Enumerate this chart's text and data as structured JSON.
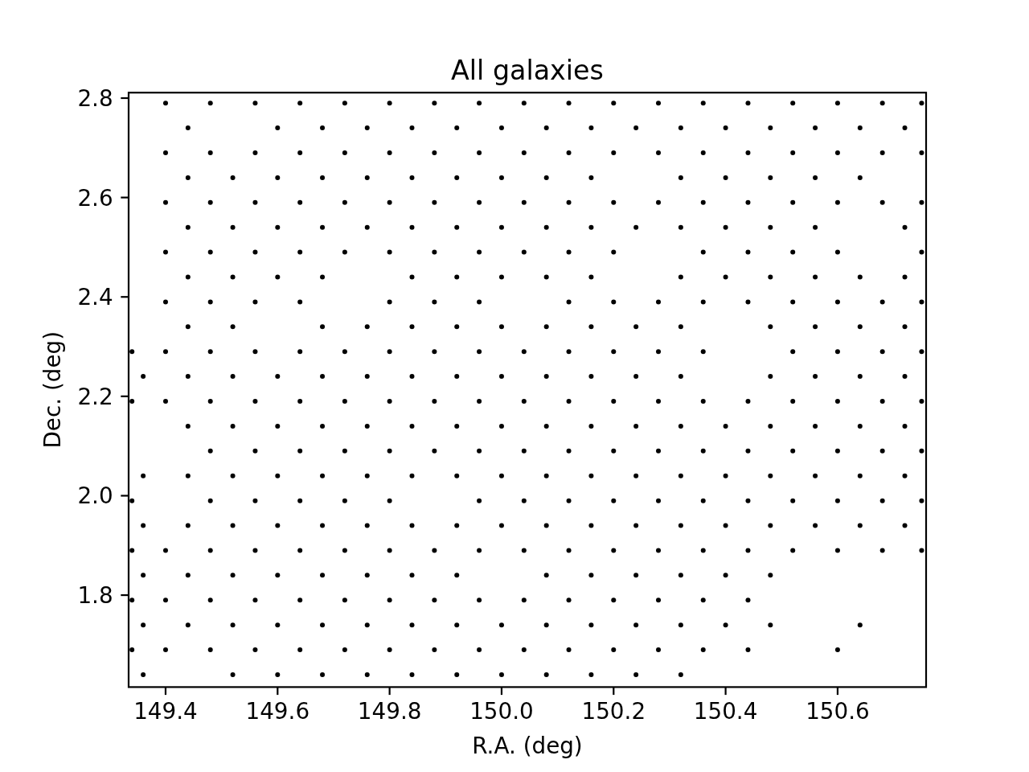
{
  "chart_data": {
    "type": "scatter",
    "title": "All galaxies",
    "xlabel": "R.A. (deg)",
    "ylabel": "Dec. (deg)",
    "color": "#000000",
    "marker": "circle",
    "xlim": [
      149.334,
      150.758
    ],
    "ylim": [
      1.615,
      2.811
    ],
    "xticks": [
      149.4,
      149.6,
      149.8,
      {
        "value": 150,
        "label": "150.0"
      },
      150.2,
      150.4,
      150.6
    ],
    "yticks": [
      1.8,
      {
        "value": 2,
        "label": "2.0"
      },
      2.2,
      2.4,
      2.6,
      2.8
    ],
    "x": [
      149.4,
      149.48,
      149.56,
      149.64,
      149.72,
      149.8,
      149.88,
      149.96,
      150.04,
      150.12,
      150.2,
      150.28,
      150.36,
      150.44,
      150.52,
      150.6,
      150.68,
      150.75,
      149.44,
      149.6,
      149.68,
      149.76,
      149.84,
      149.92,
      150,
      150.08,
      150.16,
      150.24,
      150.32,
      150.4,
      150.48,
      150.56,
      150.64,
      150.72,
      149.4,
      149.48,
      149.56,
      149.64,
      149.72,
      149.8,
      149.88,
      149.96,
      150.04,
      150.12,
      150.2,
      150.28,
      150.36,
      150.44,
      150.52,
      150.6,
      150.68,
      150.75,
      149.44,
      149.52,
      149.6,
      149.68,
      149.76,
      149.84,
      149.92,
      150,
      150.08,
      150.16,
      150.32,
      150.4,
      150.48,
      150.56,
      150.64,
      149.4,
      149.48,
      149.56,
      149.64,
      149.72,
      149.8,
      149.88,
      149.96,
      150.04,
      150.12,
      150.2,
      150.28,
      150.36,
      150.44,
      150.52,
      150.6,
      150.68,
      150.75,
      149.44,
      149.52,
      149.6,
      149.68,
      149.76,
      149.84,
      149.92,
      150,
      150.08,
      150.16,
      150.24,
      150.32,
      150.4,
      150.48,
      150.56,
      150.72,
      149.4,
      149.48,
      149.56,
      149.64,
      149.72,
      149.8,
      149.88,
      149.96,
      150.04,
      150.12,
      150.2,
      150.36,
      150.44,
      150.52,
      150.6,
      150.75,
      149.44,
      149.52,
      149.6,
      149.68,
      149.84,
      149.92,
      150,
      150.08,
      150.16,
      150.32,
      150.4,
      150.48,
      150.56,
      150.64,
      150.72,
      149.4,
      149.48,
      149.56,
      149.64,
      149.8,
      149.88,
      149.96,
      150.12,
      150.2,
      150.28,
      150.36,
      150.44,
      150.52,
      150.6,
      150.68,
      150.75,
      149.44,
      149.52,
      149.68,
      149.76,
      149.84,
      149.92,
      150,
      150.08,
      150.16,
      150.24,
      150.32,
      150.48,
      150.56,
      150.64,
      150.72,
      149.34,
      149.4,
      149.48,
      149.56,
      149.64,
      149.72,
      149.8,
      149.88,
      149.96,
      150.04,
      150.12,
      150.2,
      150.28,
      150.36,
      150.52,
      150.6,
      150.68,
      150.75,
      149.36,
      149.44,
      149.52,
      149.6,
      149.68,
      149.76,
      149.84,
      149.92,
      150,
      150.08,
      150.16,
      150.24,
      150.32,
      150.48,
      150.56,
      150.64,
      150.72,
      149.34,
      149.4,
      149.48,
      149.56,
      149.64,
      149.72,
      149.8,
      149.88,
      149.96,
      150.04,
      150.12,
      150.2,
      150.28,
      150.36,
      150.44,
      150.52,
      150.6,
      150.68,
      150.75,
      149.44,
      149.52,
      149.6,
      149.68,
      149.76,
      149.84,
      149.92,
      150,
      150.08,
      150.16,
      150.24,
      150.32,
      150.4,
      150.48,
      150.56,
      150.64,
      150.72,
      149.48,
      149.56,
      149.64,
      149.72,
      149.8,
      149.88,
      149.96,
      150.04,
      150.12,
      150.2,
      150.28,
      150.36,
      150.44,
      150.52,
      150.6,
      150.68,
      150.75,
      149.36,
      149.44,
      149.52,
      149.6,
      149.68,
      149.76,
      149.84,
      149.92,
      150,
      150.08,
      150.16,
      150.24,
      150.32,
      150.4,
      150.48,
      150.56,
      150.64,
      150.72,
      149.34,
      149.48,
      149.56,
      149.64,
      149.72,
      149.8,
      149.96,
      150.04,
      150.12,
      150.2,
      150.28,
      150.36,
      150.44,
      150.52,
      150.6,
      150.68,
      150.75,
      149.36,
      149.44,
      149.52,
      149.6,
      149.68,
      149.76,
      149.84,
      149.92,
      150,
      150.08,
      150.16,
      150.24,
      150.32,
      150.4,
      150.48,
      150.56,
      150.64,
      150.72,
      149.34,
      149.4,
      149.48,
      149.56,
      149.64,
      149.72,
      149.8,
      149.88,
      149.96,
      150.04,
      150.12,
      150.2,
      150.28,
      150.36,
      150.44,
      150.52,
      150.6,
      150.68,
      150.75,
      149.36,
      149.44,
      149.52,
      149.6,
      149.68,
      149.76,
      149.84,
      149.92,
      150.08,
      150.16,
      150.24,
      150.32,
      150.4,
      150.48,
      149.34,
      149.4,
      149.48,
      149.56,
      149.64,
      149.72,
      149.8,
      149.88,
      149.96,
      150.04,
      150.12,
      150.2,
      150.28,
      150.36,
      150.44,
      149.36,
      149.44,
      149.52,
      149.6,
      149.68,
      149.76,
      149.84,
      149.92,
      150,
      150.08,
      150.16,
      150.24,
      150.32,
      150.4,
      150.48,
      150.64,
      149.34,
      149.4,
      149.48,
      149.56,
      149.64,
      149.72,
      149.8,
      149.88,
      149.96,
      150.04,
      150.12,
      150.2,
      150.28,
      150.36,
      150.44,
      150.6,
      149.36,
      149.52,
      149.6,
      149.68,
      149.76,
      149.84,
      149.92,
      150,
      150.08,
      150.16,
      150.24,
      150.32
    ],
    "values": [
      2.79,
      2.79,
      2.79,
      2.79,
      2.79,
      2.79,
      2.79,
      2.79,
      2.79,
      2.79,
      2.79,
      2.79,
      2.79,
      2.79,
      2.79,
      2.79,
      2.79,
      2.79,
      2.74,
      2.74,
      2.74,
      2.74,
      2.74,
      2.74,
      2.74,
      2.74,
      2.74,
      2.74,
      2.74,
      2.74,
      2.74,
      2.74,
      2.74,
      2.74,
      2.69,
      2.69,
      2.69,
      2.69,
      2.69,
      2.69,
      2.69,
      2.69,
      2.69,
      2.69,
      2.69,
      2.69,
      2.69,
      2.69,
      2.69,
      2.69,
      2.69,
      2.69,
      2.64,
      2.64,
      2.64,
      2.64,
      2.64,
      2.64,
      2.64,
      2.64,
      2.64,
      2.64,
      2.64,
      2.64,
      2.64,
      2.64,
      2.64,
      2.59,
      2.59,
      2.59,
      2.59,
      2.59,
      2.59,
      2.59,
      2.59,
      2.59,
      2.59,
      2.59,
      2.59,
      2.59,
      2.59,
      2.59,
      2.59,
      2.59,
      2.59,
      2.54,
      2.54,
      2.54,
      2.54,
      2.54,
      2.54,
      2.54,
      2.54,
      2.54,
      2.54,
      2.54,
      2.54,
      2.54,
      2.54,
      2.54,
      2.54,
      2.49,
      2.49,
      2.49,
      2.49,
      2.49,
      2.49,
      2.49,
      2.49,
      2.49,
      2.49,
      2.49,
      2.49,
      2.49,
      2.49,
      2.49,
      2.49,
      2.44,
      2.44,
      2.44,
      2.44,
      2.44,
      2.44,
      2.44,
      2.44,
      2.44,
      2.44,
      2.44,
      2.44,
      2.44,
      2.44,
      2.44,
      2.39,
      2.39,
      2.39,
      2.39,
      2.39,
      2.39,
      2.39,
      2.39,
      2.39,
      2.39,
      2.39,
      2.39,
      2.39,
      2.39,
      2.39,
      2.39,
      2.34,
      2.34,
      2.34,
      2.34,
      2.34,
      2.34,
      2.34,
      2.34,
      2.34,
      2.34,
      2.34,
      2.34,
      2.34,
      2.34,
      2.34,
      2.29,
      2.29,
      2.29,
      2.29,
      2.29,
      2.29,
      2.29,
      2.29,
      2.29,
      2.29,
      2.29,
      2.29,
      2.29,
      2.29,
      2.29,
      2.29,
      2.29,
      2.29,
      2.24,
      2.24,
      2.24,
      2.24,
      2.24,
      2.24,
      2.24,
      2.24,
      2.24,
      2.24,
      2.24,
      2.24,
      2.24,
      2.24,
      2.24,
      2.24,
      2.24,
      2.19,
      2.19,
      2.19,
      2.19,
      2.19,
      2.19,
      2.19,
      2.19,
      2.19,
      2.19,
      2.19,
      2.19,
      2.19,
      2.19,
      2.19,
      2.19,
      2.19,
      2.19,
      2.19,
      2.14,
      2.14,
      2.14,
      2.14,
      2.14,
      2.14,
      2.14,
      2.14,
      2.14,
      2.14,
      2.14,
      2.14,
      2.14,
      2.14,
      2.14,
      2.14,
      2.14,
      2.09,
      2.09,
      2.09,
      2.09,
      2.09,
      2.09,
      2.09,
      2.09,
      2.09,
      2.09,
      2.09,
      2.09,
      2.09,
      2.09,
      2.09,
      2.09,
      2.09,
      2.04,
      2.04,
      2.04,
      2.04,
      2.04,
      2.04,
      2.04,
      2.04,
      2.04,
      2.04,
      2.04,
      2.04,
      2.04,
      2.04,
      2.04,
      2.04,
      2.04,
      2.04,
      1.99,
      1.99,
      1.99,
      1.99,
      1.99,
      1.99,
      1.99,
      1.99,
      1.99,
      1.99,
      1.99,
      1.99,
      1.99,
      1.99,
      1.99,
      1.99,
      1.99,
      1.94,
      1.94,
      1.94,
      1.94,
      1.94,
      1.94,
      1.94,
      1.94,
      1.94,
      1.94,
      1.94,
      1.94,
      1.94,
      1.94,
      1.94,
      1.94,
      1.94,
      1.94,
      1.89,
      1.89,
      1.89,
      1.89,
      1.89,
      1.89,
      1.89,
      1.89,
      1.89,
      1.89,
      1.89,
      1.89,
      1.89,
      1.89,
      1.89,
      1.89,
      1.89,
      1.89,
      1.89,
      1.84,
      1.84,
      1.84,
      1.84,
      1.84,
      1.84,
      1.84,
      1.84,
      1.84,
      1.84,
      1.84,
      1.84,
      1.84,
      1.84,
      1.79,
      1.79,
      1.79,
      1.79,
      1.79,
      1.79,
      1.79,
      1.79,
      1.79,
      1.79,
      1.79,
      1.79,
      1.79,
      1.79,
      1.79,
      1.74,
      1.74,
      1.74,
      1.74,
      1.74,
      1.74,
      1.74,
      1.74,
      1.74,
      1.74,
      1.74,
      1.74,
      1.74,
      1.74,
      1.74,
      1.74,
      1.69,
      1.69,
      1.69,
      1.69,
      1.69,
      1.69,
      1.69,
      1.69,
      1.69,
      1.69,
      1.69,
      1.69,
      1.69,
      1.69,
      1.69,
      1.69,
      1.64,
      1.64,
      1.64,
      1.64,
      1.64,
      1.64,
      1.64,
      1.64,
      1.64,
      1.64,
      1.64,
      1.64
    ]
  }
}
